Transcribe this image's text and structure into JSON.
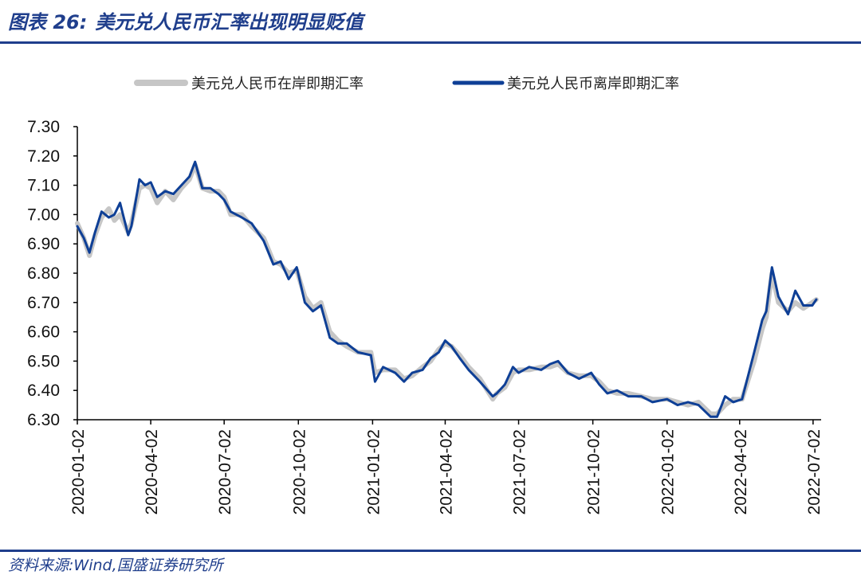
{
  "header": {
    "label": "图表 26:",
    "title": "美元兑人民币汇率出现明显贬值"
  },
  "source": "资料来源:Wind,国盛证券研究所",
  "colors": {
    "onshore": "#c6c6c6",
    "offshore": "#0e3f96",
    "axis": "#000000",
    "accent": "#1f3e8c"
  },
  "chart_data": {
    "type": "line",
    "title": "美元兑人民币汇率出现明显贬值",
    "xlabel": "",
    "ylabel": "",
    "ylim": [
      6.3,
      7.3
    ],
    "yticks": [
      "7.30",
      "7.20",
      "7.10",
      "7.00",
      "6.90",
      "6.80",
      "6.70",
      "6.60",
      "6.50",
      "6.40",
      "6.30"
    ],
    "xticks": [
      "2020-01-02",
      "2020-04-02",
      "2020-07-02",
      "2020-10-02",
      "2021-01-02",
      "2021-04-02",
      "2021-07-02",
      "2021-10-02",
      "2022-01-02",
      "2022-04-02",
      "2022-07-02"
    ],
    "grid": false,
    "legend": "top-center",
    "series": [
      {
        "name": "美元兑人民币在岸即期汇率",
        "points": [
          [
            "2020-01-02",
            6.97
          ],
          [
            "2020-01-10",
            6.92
          ],
          [
            "2020-01-17",
            6.86
          ],
          [
            "2020-01-24",
            6.93
          ],
          [
            "2020-02-01",
            6.99
          ],
          [
            "2020-02-10",
            7.02
          ],
          [
            "2020-02-17",
            6.98
          ],
          [
            "2020-02-24",
            7.0
          ],
          [
            "2020-03-05",
            6.94
          ],
          [
            "2020-03-09",
            6.97
          ],
          [
            "2020-03-19",
            7.09
          ],
          [
            "2020-03-26",
            7.1
          ],
          [
            "2020-04-02",
            7.09
          ],
          [
            "2020-04-10",
            7.04
          ],
          [
            "2020-04-20",
            7.08
          ],
          [
            "2020-04-30",
            7.05
          ],
          [
            "2020-05-10",
            7.09
          ],
          [
            "2020-05-20",
            7.12
          ],
          [
            "2020-05-27",
            7.17
          ],
          [
            "2020-06-05",
            7.09
          ],
          [
            "2020-06-15",
            7.08
          ],
          [
            "2020-06-25",
            7.08
          ],
          [
            "2020-07-02",
            7.06
          ],
          [
            "2020-07-10",
            7.0
          ],
          [
            "2020-07-24",
            7.0
          ],
          [
            "2020-08-05",
            6.96
          ],
          [
            "2020-08-20",
            6.92
          ],
          [
            "2020-09-01",
            6.84
          ],
          [
            "2020-09-10",
            6.83
          ],
          [
            "2020-09-20",
            6.8
          ],
          [
            "2020-09-30",
            6.81
          ],
          [
            "2020-10-10",
            6.72
          ],
          [
            "2020-10-20",
            6.68
          ],
          [
            "2020-10-30",
            6.7
          ],
          [
            "2020-11-10",
            6.6
          ],
          [
            "2020-11-20",
            6.57
          ],
          [
            "2020-12-01",
            6.55
          ],
          [
            "2020-12-15",
            6.53
          ],
          [
            "2020-12-31",
            6.53
          ],
          [
            "2021-01-05",
            6.46
          ],
          [
            "2021-01-15",
            6.47
          ],
          [
            "2021-01-30",
            6.47
          ],
          [
            "2021-02-10",
            6.44
          ],
          [
            "2021-02-20",
            6.45
          ],
          [
            "2021-03-05",
            6.48
          ],
          [
            "2021-03-15",
            6.5
          ],
          [
            "2021-03-25",
            6.54
          ],
          [
            "2021-04-02",
            6.56
          ],
          [
            "2021-04-10",
            6.55
          ],
          [
            "2021-04-20",
            6.52
          ],
          [
            "2021-05-01",
            6.48
          ],
          [
            "2021-05-15",
            6.44
          ],
          [
            "2021-05-31",
            6.37
          ],
          [
            "2021-06-05",
            6.39
          ],
          [
            "2021-06-15",
            6.41
          ],
          [
            "2021-06-25",
            6.46
          ],
          [
            "2021-07-02",
            6.47
          ],
          [
            "2021-07-15",
            6.47
          ],
          [
            "2021-07-30",
            6.48
          ],
          [
            "2021-08-10",
            6.48
          ],
          [
            "2021-08-20",
            6.49
          ],
          [
            "2021-09-01",
            6.46
          ],
          [
            "2021-09-15",
            6.45
          ],
          [
            "2021-09-30",
            6.45
          ],
          [
            "2021-10-10",
            6.43
          ],
          [
            "2021-10-20",
            6.4
          ],
          [
            "2021-11-01",
            6.39
          ],
          [
            "2021-11-15",
            6.39
          ],
          [
            "2021-12-01",
            6.38
          ],
          [
            "2021-12-15",
            6.37
          ],
          [
            "2022-01-02",
            6.37
          ],
          [
            "2022-01-15",
            6.36
          ],
          [
            "2022-01-28",
            6.35
          ],
          [
            "2022-02-10",
            6.36
          ],
          [
            "2022-02-25",
            6.32
          ],
          [
            "2022-03-05",
            6.32
          ],
          [
            "2022-03-15",
            6.35
          ],
          [
            "2022-03-25",
            6.37
          ],
          [
            "2022-04-05",
            6.37
          ],
          [
            "2022-04-20",
            6.5
          ],
          [
            "2022-04-30",
            6.61
          ],
          [
            "2022-05-05",
            6.65
          ],
          [
            "2022-05-12",
            6.8
          ],
          [
            "2022-05-20",
            6.7
          ],
          [
            "2022-06-01",
            6.67
          ],
          [
            "2022-06-10",
            6.7
          ],
          [
            "2022-06-20",
            6.68
          ],
          [
            "2022-07-01",
            6.7
          ],
          [
            "2022-07-06",
            6.71
          ]
        ]
      },
      {
        "name": "美元兑人民币离岸即期汇率",
        "points": [
          [
            "2020-01-02",
            6.96
          ],
          [
            "2020-01-10",
            6.92
          ],
          [
            "2020-01-17",
            6.87
          ],
          [
            "2020-01-24",
            6.94
          ],
          [
            "2020-02-01",
            7.01
          ],
          [
            "2020-02-10",
            6.99
          ],
          [
            "2020-02-17",
            7.0
          ],
          [
            "2020-02-24",
            7.04
          ],
          [
            "2020-03-05",
            6.93
          ],
          [
            "2020-03-09",
            6.96
          ],
          [
            "2020-03-19",
            7.12
          ],
          [
            "2020-03-26",
            7.1
          ],
          [
            "2020-04-02",
            7.11
          ],
          [
            "2020-04-10",
            7.06
          ],
          [
            "2020-04-20",
            7.08
          ],
          [
            "2020-04-30",
            7.07
          ],
          [
            "2020-05-10",
            7.1
          ],
          [
            "2020-05-20",
            7.13
          ],
          [
            "2020-05-27",
            7.18
          ],
          [
            "2020-06-05",
            7.09
          ],
          [
            "2020-06-15",
            7.09
          ],
          [
            "2020-06-25",
            7.07
          ],
          [
            "2020-07-02",
            7.05
          ],
          [
            "2020-07-10",
            7.01
          ],
          [
            "2020-07-24",
            6.99
          ],
          [
            "2020-08-05",
            6.97
          ],
          [
            "2020-08-20",
            6.91
          ],
          [
            "2020-09-01",
            6.83
          ],
          [
            "2020-09-10",
            6.84
          ],
          [
            "2020-09-20",
            6.78
          ],
          [
            "2020-09-30",
            6.82
          ],
          [
            "2020-10-10",
            6.7
          ],
          [
            "2020-10-20",
            6.67
          ],
          [
            "2020-10-30",
            6.69
          ],
          [
            "2020-11-10",
            6.58
          ],
          [
            "2020-11-20",
            6.56
          ],
          [
            "2020-12-01",
            6.56
          ],
          [
            "2020-12-15",
            6.53
          ],
          [
            "2020-12-31",
            6.52
          ],
          [
            "2021-01-05",
            6.43
          ],
          [
            "2021-01-15",
            6.48
          ],
          [
            "2021-01-30",
            6.46
          ],
          [
            "2021-02-10",
            6.43
          ],
          [
            "2021-02-20",
            6.46
          ],
          [
            "2021-03-05",
            6.47
          ],
          [
            "2021-03-15",
            6.51
          ],
          [
            "2021-03-25",
            6.53
          ],
          [
            "2021-04-02",
            6.57
          ],
          [
            "2021-04-10",
            6.55
          ],
          [
            "2021-04-20",
            6.51
          ],
          [
            "2021-05-01",
            6.47
          ],
          [
            "2021-05-15",
            6.43
          ],
          [
            "2021-05-31",
            6.38
          ],
          [
            "2021-06-05",
            6.39
          ],
          [
            "2021-06-15",
            6.42
          ],
          [
            "2021-06-25",
            6.48
          ],
          [
            "2021-07-02",
            6.46
          ],
          [
            "2021-07-15",
            6.48
          ],
          [
            "2021-07-30",
            6.47
          ],
          [
            "2021-08-10",
            6.49
          ],
          [
            "2021-08-20",
            6.5
          ],
          [
            "2021-09-01",
            6.46
          ],
          [
            "2021-09-15",
            6.44
          ],
          [
            "2021-09-30",
            6.46
          ],
          [
            "2021-10-10",
            6.42
          ],
          [
            "2021-10-20",
            6.39
          ],
          [
            "2021-11-01",
            6.4
          ],
          [
            "2021-11-15",
            6.38
          ],
          [
            "2021-12-01",
            6.38
          ],
          [
            "2021-12-15",
            6.36
          ],
          [
            "2022-01-02",
            6.37
          ],
          [
            "2022-01-15",
            6.35
          ],
          [
            "2022-01-28",
            6.36
          ],
          [
            "2022-02-10",
            6.35
          ],
          [
            "2022-02-25",
            6.31
          ],
          [
            "2022-03-05",
            6.31
          ],
          [
            "2022-03-15",
            6.38
          ],
          [
            "2022-03-25",
            6.36
          ],
          [
            "2022-04-05",
            6.37
          ],
          [
            "2022-04-20",
            6.53
          ],
          [
            "2022-04-30",
            6.64
          ],
          [
            "2022-05-05",
            6.67
          ],
          [
            "2022-05-12",
            6.82
          ],
          [
            "2022-05-20",
            6.72
          ],
          [
            "2022-06-01",
            6.66
          ],
          [
            "2022-06-10",
            6.74
          ],
          [
            "2022-06-20",
            6.69
          ],
          [
            "2022-07-01",
            6.69
          ],
          [
            "2022-07-06",
            6.71
          ]
        ]
      }
    ]
  }
}
